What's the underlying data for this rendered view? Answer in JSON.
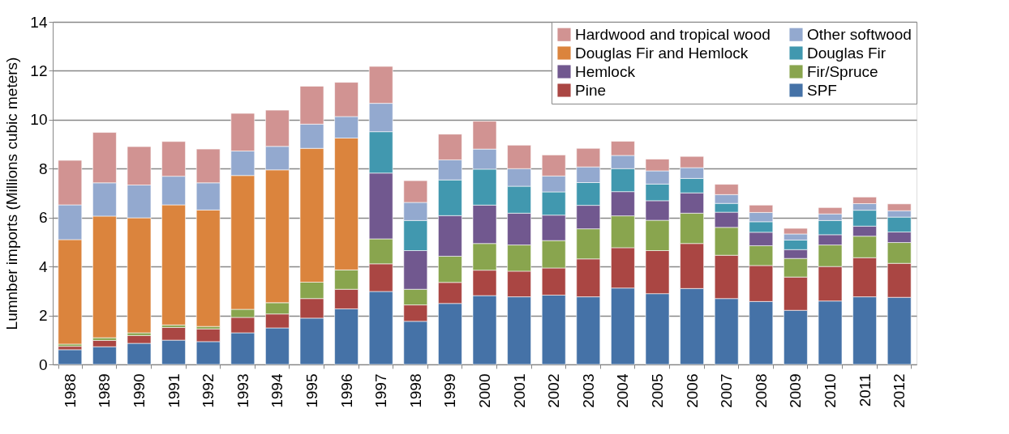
{
  "chart_data": {
    "type": "bar",
    "stacked": true,
    "ylabel": "Lumnber imports (Millions cubic meters)",
    "categories": [
      "1988",
      "1989",
      "1990",
      "1991",
      "1992",
      "1993",
      "1994",
      "1995",
      "1996",
      "1997",
      "1998",
      "1999",
      "2000",
      "2001",
      "2002",
      "2003",
      "2004",
      "2005",
      "2006",
      "2007",
      "2008",
      "2009",
      "2010",
      "2011",
      "2012"
    ],
    "ylim": [
      0,
      14
    ],
    "yticks": [
      0,
      2,
      4,
      6,
      8,
      10,
      12,
      14
    ],
    "grid": "y",
    "legend": "top right",
    "series": [
      {
        "name": "SPF",
        "color": "#4572a7",
        "values": [
          0.6,
          0.72,
          0.86,
          0.99,
          0.93,
          1.29,
          1.49,
          1.89,
          2.27,
          2.98,
          1.76,
          2.49,
          2.81,
          2.76,
          2.83,
          2.76,
          3.12,
          2.89,
          3.1,
          2.69,
          2.57,
          2.21,
          2.59,
          2.76,
          2.74
        ]
      },
      {
        "name": "Pine",
        "color": "#aa4643",
        "values": [
          0.14,
          0.26,
          0.32,
          0.52,
          0.52,
          0.63,
          0.57,
          0.8,
          0.8,
          1.13,
          0.67,
          0.86,
          1.04,
          1.05,
          1.11,
          1.55,
          1.65,
          1.76,
          1.84,
          1.77,
          1.47,
          1.36,
          1.41,
          1.6,
          1.39
        ]
      },
      {
        "name": "Fir/Spruce",
        "color": "#89a54e",
        "values": [
          0.09,
          0.11,
          0.11,
          0.1,
          0.1,
          0.33,
          0.46,
          0.67,
          0.79,
          1.02,
          0.64,
          1.07,
          1.09,
          1.07,
          1.12,
          1.23,
          1.3,
          1.24,
          1.24,
          1.14,
          0.81,
          0.76,
          0.88,
          0.88,
          0.85
        ]
      },
      {
        "name": "Hemlock",
        "color": "#71588f",
        "values": [
          null,
          null,
          null,
          null,
          null,
          null,
          null,
          null,
          null,
          2.69,
          1.58,
          1.66,
          1.57,
          1.3,
          1.04,
          0.96,
          0.99,
          0.8,
          0.83,
          0.62,
          0.55,
          0.36,
          0.42,
          0.41,
          0.43
        ]
      },
      {
        "name": "Douglas Fir",
        "color": "#4198af",
        "values": [
          null,
          null,
          null,
          null,
          null,
          null,
          null,
          null,
          null,
          1.69,
          1.23,
          1.46,
          1.47,
          1.1,
          0.95,
          0.93,
          0.94,
          0.68,
          0.59,
          0.36,
          0.43,
          0.39,
          0.58,
          0.65,
          0.61
        ]
      },
      {
        "name": "Douglas Fir and Hemlock",
        "color": "#db843d",
        "values": [
          4.27,
          4.97,
          4.7,
          4.91,
          4.76,
          5.47,
          5.43,
          5.47,
          5.39,
          null,
          null,
          null,
          null,
          null,
          null,
          null,
          null,
          null,
          null,
          null,
          null,
          null,
          null,
          null,
          null
        ]
      },
      {
        "name": "Other softwood",
        "color": "#93a9cf",
        "values": [
          1.42,
          1.36,
          1.34,
          1.17,
          1.11,
          1.0,
          0.96,
          0.99,
          0.88,
          1.16,
          0.74,
          0.82,
          0.82,
          0.72,
          0.65,
          0.64,
          0.54,
          0.54,
          0.44,
          0.36,
          0.38,
          0.25,
          0.27,
          0.27,
          0.26
        ]
      },
      {
        "name": "Hardwood and tropical wood",
        "color": "#d19392",
        "values": [
          1.82,
          2.06,
          1.57,
          1.42,
          1.38,
          1.54,
          1.48,
          1.55,
          1.4,
          1.51,
          0.89,
          1.05,
          1.14,
          0.96,
          0.86,
          0.76,
          0.58,
          0.48,
          0.46,
          0.42,
          0.3,
          0.23,
          0.26,
          0.27,
          0.28
        ]
      }
    ]
  }
}
